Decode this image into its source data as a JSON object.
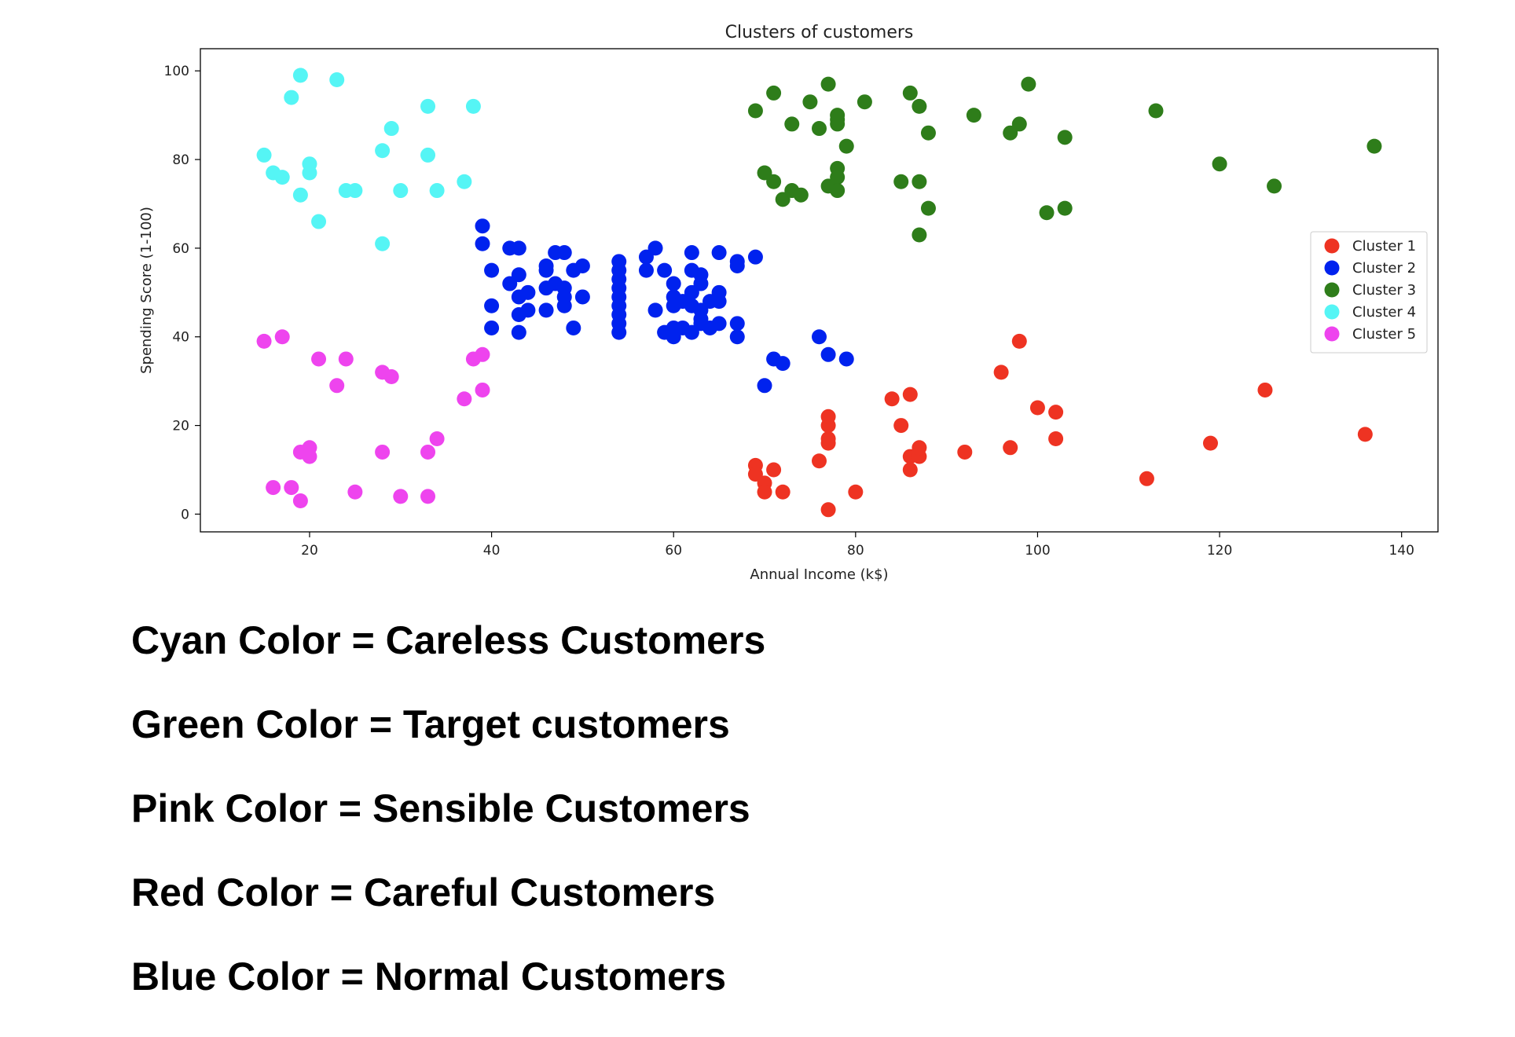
{
  "chart_data": {
    "type": "scatter",
    "title": "Clusters of customers",
    "xlabel": "Annual Income (k$)",
    "ylabel": "Spending Score (1-100)",
    "xlim": [
      8,
      144
    ],
    "ylim": [
      -4,
      105
    ],
    "xticks": [
      20,
      40,
      60,
      80,
      100,
      120,
      140
    ],
    "yticks": [
      0,
      20,
      40,
      60,
      80,
      100
    ],
    "legend_position": "center-right",
    "grid": false,
    "series": [
      {
        "name": "Cluster 1",
        "color": "#ee3322",
        "points": [
          [
            69,
            11
          ],
          [
            69,
            9
          ],
          [
            70,
            7
          ],
          [
            70,
            5
          ],
          [
            71,
            10
          ],
          [
            72,
            5
          ],
          [
            76,
            12
          ],
          [
            77,
            1
          ],
          [
            77,
            16
          ],
          [
            77,
            17
          ],
          [
            77,
            20
          ],
          [
            77,
            22
          ],
          [
            80,
            5
          ],
          [
            84,
            26
          ],
          [
            85,
            20
          ],
          [
            86,
            10
          ],
          [
            86,
            13
          ],
          [
            86,
            27
          ],
          [
            87,
            13
          ],
          [
            87,
            15
          ],
          [
            92,
            14
          ],
          [
            96,
            32
          ],
          [
            97,
            15
          ],
          [
            98,
            39
          ],
          [
            100,
            24
          ],
          [
            102,
            17
          ],
          [
            102,
            23
          ],
          [
            112,
            8
          ],
          [
            119,
            16
          ],
          [
            125,
            28
          ],
          [
            136,
            18
          ]
        ]
      },
      {
        "name": "Cluster 2",
        "color": "#0022ee",
        "points": [
          [
            39,
            65
          ],
          [
            39,
            61
          ],
          [
            40,
            55
          ],
          [
            40,
            47
          ],
          [
            40,
            42
          ],
          [
            42,
            60
          ],
          [
            42,
            52
          ],
          [
            43,
            60
          ],
          [
            43,
            54
          ],
          [
            43,
            49
          ],
          [
            43,
            45
          ],
          [
            43,
            41
          ],
          [
            44,
            50
          ],
          [
            44,
            46
          ],
          [
            46,
            56
          ],
          [
            46,
            55
          ],
          [
            46,
            51
          ],
          [
            46,
            46
          ],
          [
            47,
            59
          ],
          [
            47,
            52
          ],
          [
            48,
            59
          ],
          [
            48,
            51
          ],
          [
            48,
            49
          ],
          [
            48,
            47
          ],
          [
            49,
            55
          ],
          [
            49,
            42
          ],
          [
            50,
            56
          ],
          [
            50,
            49
          ],
          [
            54,
            57
          ],
          [
            54,
            55
          ],
          [
            54,
            53
          ],
          [
            54,
            51
          ],
          [
            54,
            49
          ],
          [
            54,
            47
          ],
          [
            54,
            45
          ],
          [
            54,
            43
          ],
          [
            54,
            41
          ],
          [
            57,
            58
          ],
          [
            57,
            55
          ],
          [
            58,
            60
          ],
          [
            58,
            46
          ],
          [
            59,
            55
          ],
          [
            59,
            41
          ],
          [
            60,
            52
          ],
          [
            60,
            49
          ],
          [
            60,
            47
          ],
          [
            60,
            40
          ],
          [
            60,
            42
          ],
          [
            61,
            42
          ],
          [
            61,
            48
          ],
          [
            62,
            59
          ],
          [
            62,
            55
          ],
          [
            62,
            50
          ],
          [
            62,
            47
          ],
          [
            62,
            41
          ],
          [
            63,
            54
          ],
          [
            63,
            52
          ],
          [
            63,
            46
          ],
          [
            63,
            44
          ],
          [
            63,
            43
          ],
          [
            64,
            48
          ],
          [
            64,
            42
          ],
          [
            65,
            59
          ],
          [
            65,
            50
          ],
          [
            65,
            48
          ],
          [
            65,
            43
          ],
          [
            67,
            57
          ],
          [
            67,
            56
          ],
          [
            67,
            43
          ],
          [
            67,
            40
          ],
          [
            69,
            58
          ],
          [
            70,
            29
          ],
          [
            71,
            35
          ],
          [
            72,
            34
          ],
          [
            76,
            40
          ],
          [
            77,
            36
          ],
          [
            79,
            35
          ]
        ]
      },
      {
        "name": "Cluster 3",
        "color": "#2e7d1a",
        "points": [
          [
            69,
            91
          ],
          [
            70,
            77
          ],
          [
            71,
            95
          ],
          [
            71,
            75
          ],
          [
            72,
            71
          ],
          [
            73,
            88
          ],
          [
            73,
            73
          ],
          [
            74,
            72
          ],
          [
            75,
            93
          ],
          [
            76,
            87
          ],
          [
            77,
            97
          ],
          [
            77,
            74
          ],
          [
            78,
            90
          ],
          [
            78,
            88
          ],
          [
            78,
            78
          ],
          [
            78,
            76
          ],
          [
            78,
            73
          ],
          [
            78,
            89
          ],
          [
            79,
            83
          ],
          [
            81,
            93
          ],
          [
            85,
            75
          ],
          [
            86,
            95
          ],
          [
            87,
            92
          ],
          [
            87,
            75
          ],
          [
            87,
            63
          ],
          [
            88,
            86
          ],
          [
            88,
            69
          ],
          [
            93,
            90
          ],
          [
            97,
            86
          ],
          [
            98,
            88
          ],
          [
            99,
            97
          ],
          [
            101,
            68
          ],
          [
            103,
            85
          ],
          [
            103,
            69
          ],
          [
            113,
            91
          ],
          [
            120,
            79
          ],
          [
            126,
            74
          ],
          [
            137,
            83
          ]
        ]
      },
      {
        "name": "Cluster 4",
        "color": "#55f5f5",
        "points": [
          [
            15,
            81
          ],
          [
            16,
            77
          ],
          [
            17,
            76
          ],
          [
            18,
            94
          ],
          [
            19,
            99
          ],
          [
            19,
            72
          ],
          [
            20,
            77
          ],
          [
            20,
            79
          ],
          [
            21,
            66
          ],
          [
            23,
            98
          ],
          [
            24,
            73
          ],
          [
            25,
            73
          ],
          [
            28,
            82
          ],
          [
            28,
            61
          ],
          [
            29,
            87
          ],
          [
            30,
            73
          ],
          [
            33,
            92
          ],
          [
            33,
            81
          ],
          [
            34,
            73
          ],
          [
            37,
            75
          ],
          [
            38,
            92
          ]
        ]
      },
      {
        "name": "Cluster 5",
        "color": "#ee44ee",
        "points": [
          [
            15,
            39
          ],
          [
            16,
            6
          ],
          [
            17,
            40
          ],
          [
            18,
            6
          ],
          [
            19,
            3
          ],
          [
            19,
            14
          ],
          [
            20,
            15
          ],
          [
            20,
            13
          ],
          [
            21,
            35
          ],
          [
            23,
            29
          ],
          [
            24,
            35
          ],
          [
            25,
            5
          ],
          [
            28,
            32
          ],
          [
            28,
            14
          ],
          [
            29,
            31
          ],
          [
            30,
            4
          ],
          [
            33,
            4
          ],
          [
            33,
            14
          ],
          [
            34,
            17
          ],
          [
            37,
            26
          ],
          [
            38,
            35
          ],
          [
            39,
            36
          ],
          [
            39,
            28
          ]
        ]
      }
    ]
  },
  "notes": [
    "Cyan Color = Careless Customers",
    "Green Color = Target customers",
    "Pink Color = Sensible Customers",
    "Red Color = Careful Customers",
    "Blue Color = Normal Customers"
  ]
}
